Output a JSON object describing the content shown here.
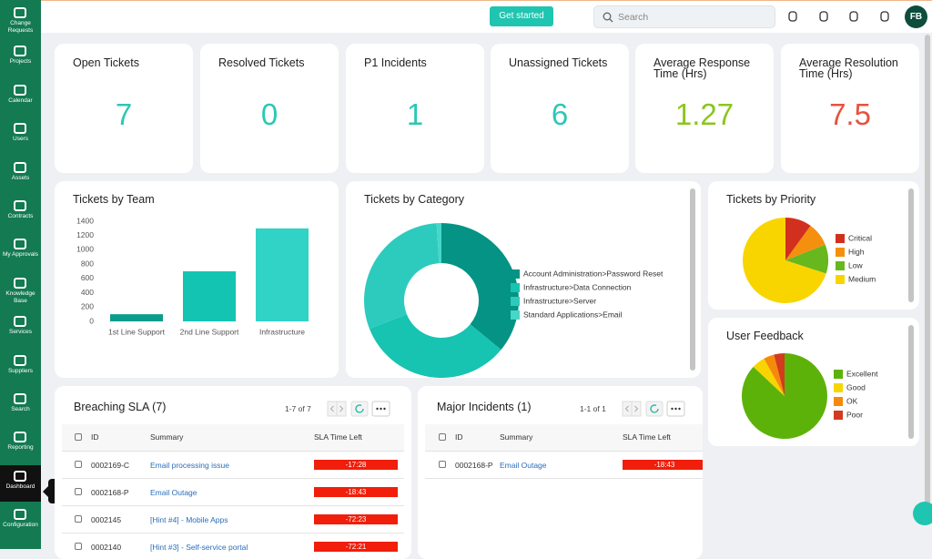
{
  "sidebar": {
    "items": [
      "Change Requests",
      "Projects",
      "Calendar",
      "Users",
      "Assets",
      "Contracts",
      "My Approvals",
      "Knowledge Base",
      "Services",
      "Suppliers",
      "Search",
      "Reporting",
      "Dashboard",
      "Configuration"
    ],
    "active": 12,
    "tooltip": "Dashboard"
  },
  "topbar": {
    "button": "Get started",
    "search_placeholder": "Search",
    "avatar": "FB"
  },
  "kpis": [
    {
      "title": "Open Tickets",
      "value": 7,
      "color": "#2cc7b6"
    },
    {
      "title": "Resolved Tickets",
      "value": 0,
      "color": "#2cc7b6"
    },
    {
      "title": "P1 Incidents",
      "value": 1,
      "color": "#2cc7b6"
    },
    {
      "title": "Unassigned Tickets",
      "value": 6,
      "color": "#2cc7b6"
    },
    {
      "title": "Average Response Time (Hrs)",
      "value": 1.27,
      "color": "#8cc51e"
    },
    {
      "title": "Average Resolution Time (Hrs)",
      "value": 7.5,
      "color": "#e5533f"
    }
  ],
  "chart_data": [
    {
      "type": "bar",
      "title": "Tickets by Team",
      "categories": [
        "1st Line Support",
        "2nd Line Support",
        "Infrastructure"
      ],
      "values": [
        100,
        700,
        1300
      ],
      "colors": [
        "#0b9c8d",
        "#14c4b3",
        "#30d3c5"
      ],
      "ylim": [
        0,
        1400
      ],
      "yticks": [
        0,
        200,
        400,
        600,
        800,
        1000,
        1200,
        1400
      ]
    },
    {
      "type": "donut",
      "title": "Tickets by Category",
      "categories": [
        "Account Administration>Password Reset",
        "Infrastructure>Data Connection",
        "Infrastructure>Server",
        "Standard Applications>Email"
      ],
      "values": [
        36,
        33,
        30,
        1
      ],
      "colors": [
        "#049384",
        "#17c3b1",
        "#2dcbbd",
        "#46d7c9"
      ]
    },
    {
      "type": "pie",
      "title": "Tickets by Priority",
      "categories": [
        "Critical",
        "High",
        "Low",
        "Medium"
      ],
      "values": [
        10,
        9,
        11,
        70
      ],
      "colors": [
        "#d2301e",
        "#f5900f",
        "#66b81e",
        "#f9d500"
      ]
    },
    {
      "type": "pie",
      "title": "User Feedback",
      "categories": [
        "Excellent",
        "Good",
        "OK",
        "Poor"
      ],
      "values": [
        87,
        5,
        4,
        4
      ],
      "colors": [
        "#5db20a",
        "#f8d500",
        "#f58a0a",
        "#d43a1e"
      ]
    }
  ],
  "tables": [
    {
      "title": "Breaching SLA (7)",
      "pager": "1-7 of 7",
      "columns": [
        "ID",
        "Summary",
        "SLA Time Left"
      ],
      "rows": [
        [
          "0002169-C",
          "Email processing issue",
          "-17:28"
        ],
        [
          "0002168-P",
          "Email Outage",
          "-18:43"
        ],
        [
          "0002145",
          "[Hint #4] - Mobile Apps",
          "-72:23"
        ],
        [
          "0002140",
          "[Hint #3] - Self-service portal",
          "-72:21"
        ]
      ]
    },
    {
      "title": "Major Incidents (1)",
      "pager": "1-1 of 1",
      "columns": [
        "ID",
        "Summary",
        "SLA Time Left"
      ],
      "rows": [
        [
          "0002168-P",
          "Email Outage",
          "-18:43"
        ]
      ]
    }
  ]
}
